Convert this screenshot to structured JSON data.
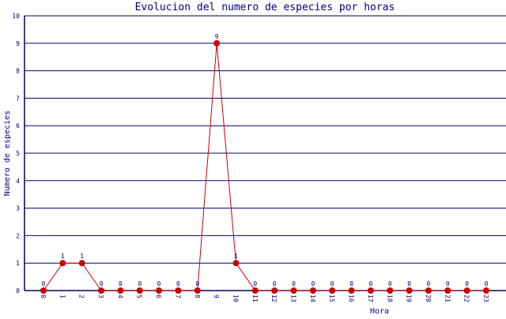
{
  "chart_data": {
    "type": "line",
    "title": "Evolucion del numero de especies por horas",
    "xlabel": "Hora",
    "ylabel": "Numero de especies",
    "categories": [
      "0",
      "1",
      "2",
      "3",
      "4",
      "5",
      "6",
      "7",
      "8",
      "9",
      "10",
      "11",
      "12",
      "13",
      "14",
      "15",
      "16",
      "17",
      "18",
      "19",
      "20",
      "21",
      "22",
      "23"
    ],
    "values": [
      0,
      1,
      1,
      0,
      0,
      0,
      0,
      0,
      0,
      9,
      1,
      0,
      0,
      0,
      0,
      0,
      0,
      0,
      0,
      0,
      0,
      0,
      0,
      0
    ],
    "yticks": [
      "0",
      "1",
      "2",
      "3",
      "4",
      "5",
      "6",
      "7",
      "8",
      "9",
      "10"
    ],
    "ylim": [
      0,
      10
    ],
    "grid": true,
    "data_labels": true,
    "colors": {
      "line": "#cc0000",
      "marker": "#cc0000",
      "grid": "#000066",
      "text": "#000080"
    }
  }
}
